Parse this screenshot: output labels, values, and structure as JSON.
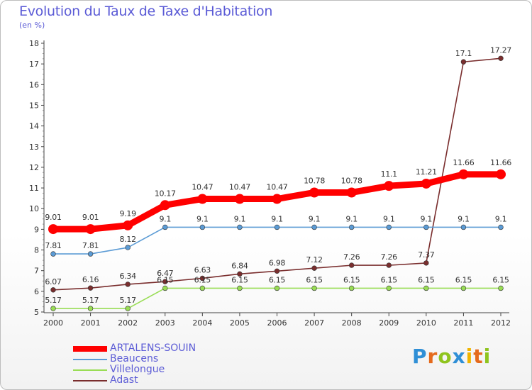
{
  "title": "Evolution du Taux de Taxe d'Habitation",
  "unit": "(en %)",
  "logo": {
    "text": "Proxiti",
    "letters": [
      {
        "ch": "P",
        "color": "#2f8fd6"
      },
      {
        "ch": "r",
        "color": "#e56a1c"
      },
      {
        "ch": "o",
        "color": "#8fc41e"
      },
      {
        "ch": "x",
        "color": "#2f8fd6"
      },
      {
        "ch": "i",
        "color": "#f0b400"
      },
      {
        "ch": "t",
        "color": "#e56a1c"
      },
      {
        "ch": "i",
        "color": "#8fc41e"
      }
    ]
  },
  "chart_data": {
    "type": "line",
    "title": "Evolution du Taux de Taxe d'Habitation",
    "ylabel": "(en %)",
    "xlabel": "",
    "x": [
      "2000",
      "2001",
      "2002",
      "2003",
      "2004",
      "2005",
      "2006",
      "2007",
      "2008",
      "2009",
      "2010",
      "2011",
      "2012"
    ],
    "ylim": [
      5,
      18
    ],
    "yticks": [
      5,
      6,
      7,
      8,
      9,
      10,
      11,
      12,
      13,
      14,
      15,
      16,
      17,
      18
    ],
    "grid": false,
    "legend_position": "bottom-left",
    "series": [
      {
        "name": "ARTALENS-SOUIN",
        "color": "#ff0000",
        "emphasis": "thick",
        "values": [
          9.01,
          9.01,
          9.19,
          10.17,
          10.47,
          10.47,
          10.47,
          10.78,
          10.78,
          11.1,
          11.21,
          11.66,
          11.66
        ],
        "labels": [
          "9.01",
          "9.01",
          "9.19",
          "10.17",
          "10.47",
          "10.47",
          "10.47",
          "10.78",
          "10.78",
          "11.1",
          "11.21",
          "11.66",
          "11.66"
        ]
      },
      {
        "name": "Beaucens",
        "color": "#5b9bd5",
        "emphasis": "thin",
        "values": [
          7.81,
          7.81,
          8.12,
          9.1,
          9.1,
          9.1,
          9.1,
          9.1,
          9.1,
          9.1,
          9.1,
          9.1,
          9.1
        ],
        "labels": [
          "7.81",
          "7.81",
          "8.12",
          "9.1",
          "9.1",
          "9.1",
          "9.1",
          "9.1",
          "9.1",
          "9.1",
          "9.1",
          "9.1",
          "9.1"
        ]
      },
      {
        "name": "Villelongue",
        "color": "#99dd55",
        "emphasis": "thin",
        "values": [
          5.17,
          5.17,
          5.17,
          6.15,
          6.15,
          6.15,
          6.15,
          6.15,
          6.15,
          6.15,
          6.15,
          6.15,
          6.15
        ],
        "labels": [
          "5.17",
          "5.17",
          "5.17",
          "6.15",
          "6.15",
          "6.15",
          "6.15",
          "6.15",
          "6.15",
          "6.15",
          "6.15",
          "6.15",
          "6.15"
        ]
      },
      {
        "name": "Adast",
        "color": "#7a2e2e",
        "emphasis": "thin",
        "values": [
          6.07,
          6.16,
          6.34,
          6.47,
          6.63,
          6.84,
          6.98,
          7.12,
          7.26,
          7.26,
          7.37,
          17.1,
          17.27
        ],
        "labels": [
          "6.07",
          "6.16",
          "6.34",
          "6.47",
          "6.63",
          "6.84",
          "6.98",
          "7.12",
          "7.26",
          "7.26",
          "7.37",
          "17.1",
          "17.27"
        ]
      }
    ]
  }
}
